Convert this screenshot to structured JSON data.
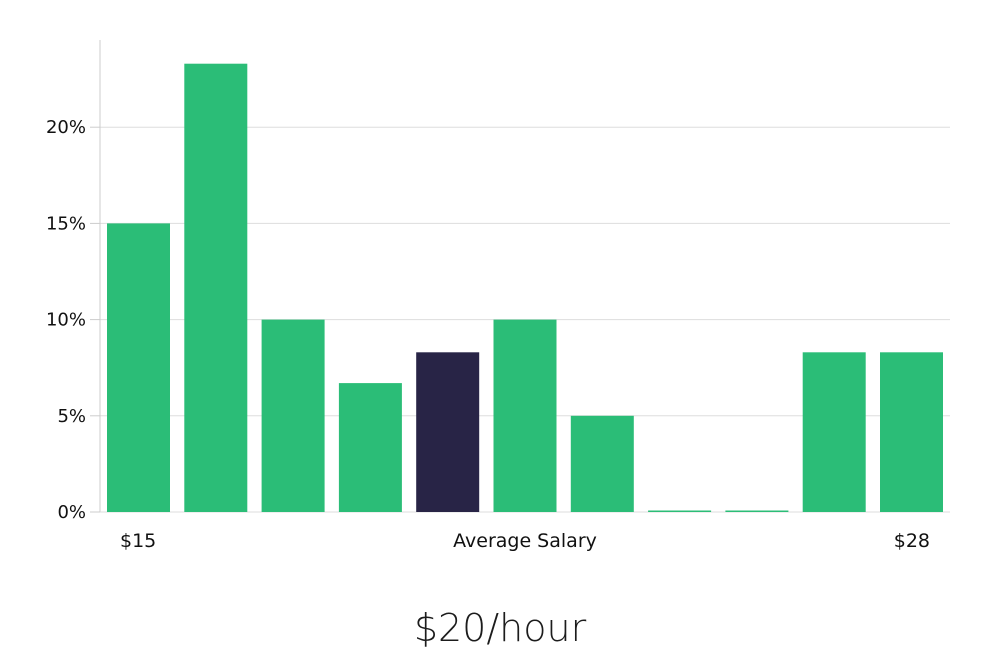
{
  "chart_data": {
    "type": "bar",
    "values": [
      15,
      23.3,
      10,
      6.7,
      8.3,
      10,
      5,
      0,
      0,
      8.3,
      8.3
    ],
    "highlight_index": 4,
    "ylim": [
      0,
      25
    ],
    "yticks": [
      0,
      5,
      10,
      15,
      20
    ],
    "ytick_labels": [
      "0%",
      "5%",
      "10%",
      "15%",
      "20%"
    ],
    "x_labels": {
      "left": "$15",
      "center": "Average Salary",
      "right": "$28"
    },
    "grid": true,
    "colors": {
      "bar": "#2bbd77",
      "highlight": "#282446",
      "grid": "#dddddd",
      "axis": "#cccccc"
    }
  },
  "headline": "$20/hour"
}
